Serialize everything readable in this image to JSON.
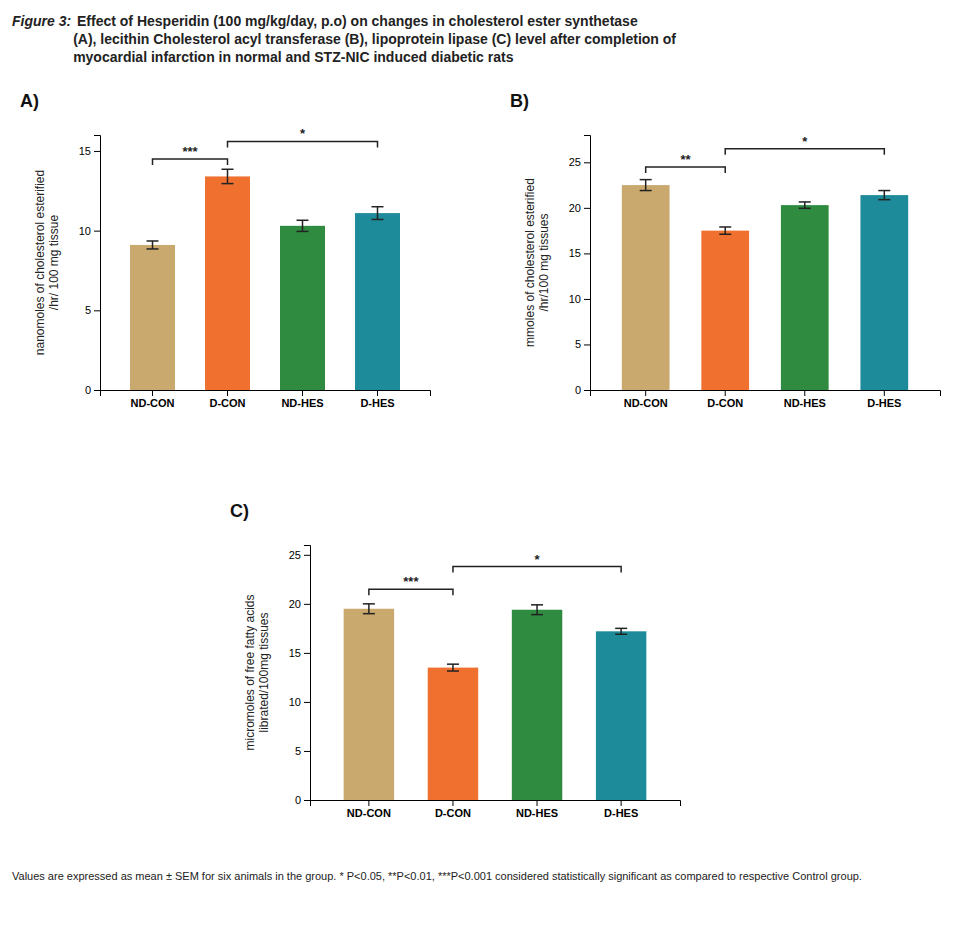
{
  "title": [
    "Figure 3:",
    " Effect of Hesperidin (100 mg/kg/day, p.o) on changes in cholesterol ester synthetase\n(A), lecithin Cholesterol acyl transferase (B), lipoprotein lipase (C) level after completion of\nmyocardial infarction in normal and STZ-NIC induced diabetic rats"
  ],
  "footnote": "Values are expressed as mean ± SEM for six animals in the group. * P<0.05, **P<0.01, ***P<0.001 considered statistically significant as compared to respective Control group.",
  "chart_data": [
    {
      "type": "bar",
      "title": "A)",
      "categories": [
        "ND-CON",
        "D-CON",
        "ND-HES",
        "D-HES"
      ],
      "values": [
        9.1,
        13.4,
        10.3,
        11.1
      ],
      "errors": [
        0.25,
        0.45,
        0.35,
        0.4
      ],
      "colors": [
        "#C9A96E",
        "#F07030",
        "#2E8B40",
        "#1E8B9A"
      ],
      "y_label": "nanomoles of cholesterol esterified\n/hr/ 100 mg tissue",
      "ylim": [
        0,
        16
      ],
      "yticks": [
        0,
        5,
        10,
        15
      ],
      "grid": false,
      "annotations": [
        {
          "text": "***",
          "from": "ND-CON",
          "to": "D-CON",
          "y": 14.5
        },
        {
          "text": "*",
          "from": "D-CON",
          "to": "D-HES",
          "y": 15.6
        }
      ]
    },
    {
      "type": "bar",
      "title": "B)",
      "categories": [
        "ND-CON",
        "D-CON",
        "ND-HES",
        "D-HES"
      ],
      "values": [
        22.5,
        17.5,
        20.3,
        21.4
      ],
      "errors": [
        0.6,
        0.4,
        0.35,
        0.5
      ],
      "colors": [
        "#C9A96E",
        "#F07030",
        "#2E8B40",
        "#1E8B9A"
      ],
      "y_label": "mmoles of cholesterol esterified\n/hr/100 mg tissues",
      "ylim": [
        0,
        28
      ],
      "yticks": [
        0,
        5,
        10,
        15,
        20,
        25
      ],
      "grid": false,
      "annotations": [
        {
          "text": "**",
          "from": "ND-CON",
          "to": "D-CON",
          "y": 24.5
        },
        {
          "text": "*",
          "from": "D-CON",
          "to": "D-HES",
          "y": 26.5
        }
      ]
    },
    {
      "type": "bar",
      "title": "C)",
      "categories": [
        "ND-CON",
        "D-CON",
        "ND-HES",
        "D-HES"
      ],
      "values": [
        19.5,
        13.5,
        19.4,
        17.2
      ],
      "errors": [
        0.5,
        0.35,
        0.5,
        0.3
      ],
      "colors": [
        "#C9A96E",
        "#F07030",
        "#2E8B40",
        "#1E8B9A"
      ],
      "y_label": "micromoles of free fatty acids\nlibrated/100mg tissues",
      "ylim": [
        0,
        26
      ],
      "yticks": [
        0,
        5,
        10,
        15,
        20,
        25
      ],
      "grid": false,
      "annotations": [
        {
          "text": "***",
          "from": "ND-CON",
          "to": "D-CON",
          "y": 21.5
        },
        {
          "text": "*",
          "from": "D-CON",
          "to": "D-HES",
          "y": 23.8
        }
      ]
    }
  ]
}
